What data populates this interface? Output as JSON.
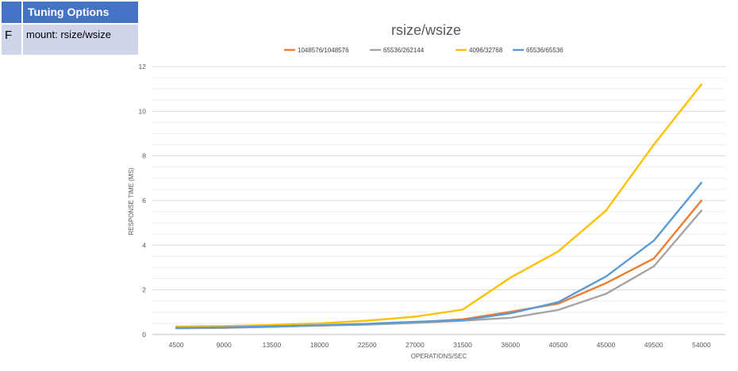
{
  "tuning": {
    "header": "Tuning Options",
    "row_letter": "F",
    "row_text": "mount: rsize/wsize"
  },
  "colors": {
    "header_bg": "#4472c4",
    "row_bg": "#cfd5ea"
  },
  "chart_data": {
    "type": "line",
    "title": "rsize/wsize",
    "xlabel": "OPERATIONS/SEC",
    "ylabel": "RESPONSE TIME (MS)",
    "ylim": [
      0,
      12
    ],
    "yticks": [
      0,
      2,
      4,
      6,
      8,
      10,
      12
    ],
    "grid": true,
    "legend_position": "top",
    "categories": [
      "4500",
      "9000",
      "13500",
      "18000",
      "22500",
      "27000",
      "31500",
      "36000",
      "40500",
      "45000",
      "49500",
      "54000"
    ],
    "series": [
      {
        "name": "1048576/1048576",
        "color": "#ed7d31",
        "values": [
          0.28,
          0.3,
          0.35,
          0.4,
          0.46,
          0.55,
          0.68,
          1.02,
          1.38,
          2.3,
          3.4,
          6.0
        ]
      },
      {
        "name": "65536/262144",
        "color": "#a5a5a5",
        "values": [
          0.28,
          0.3,
          0.34,
          0.4,
          0.44,
          0.52,
          0.62,
          0.75,
          1.1,
          1.82,
          3.05,
          5.55
        ]
      },
      {
        "name": "4096/32768",
        "color": "#ffc000",
        "values": [
          0.36,
          0.38,
          0.43,
          0.5,
          0.62,
          0.8,
          1.12,
          2.55,
          3.72,
          5.55,
          8.5,
          11.2
        ]
      },
      {
        "name": "65536/65536",
        "color": "#5b9bd5",
        "values": [
          0.3,
          0.32,
          0.37,
          0.42,
          0.48,
          0.57,
          0.64,
          0.95,
          1.45,
          2.6,
          4.2,
          6.8
        ]
      }
    ]
  }
}
